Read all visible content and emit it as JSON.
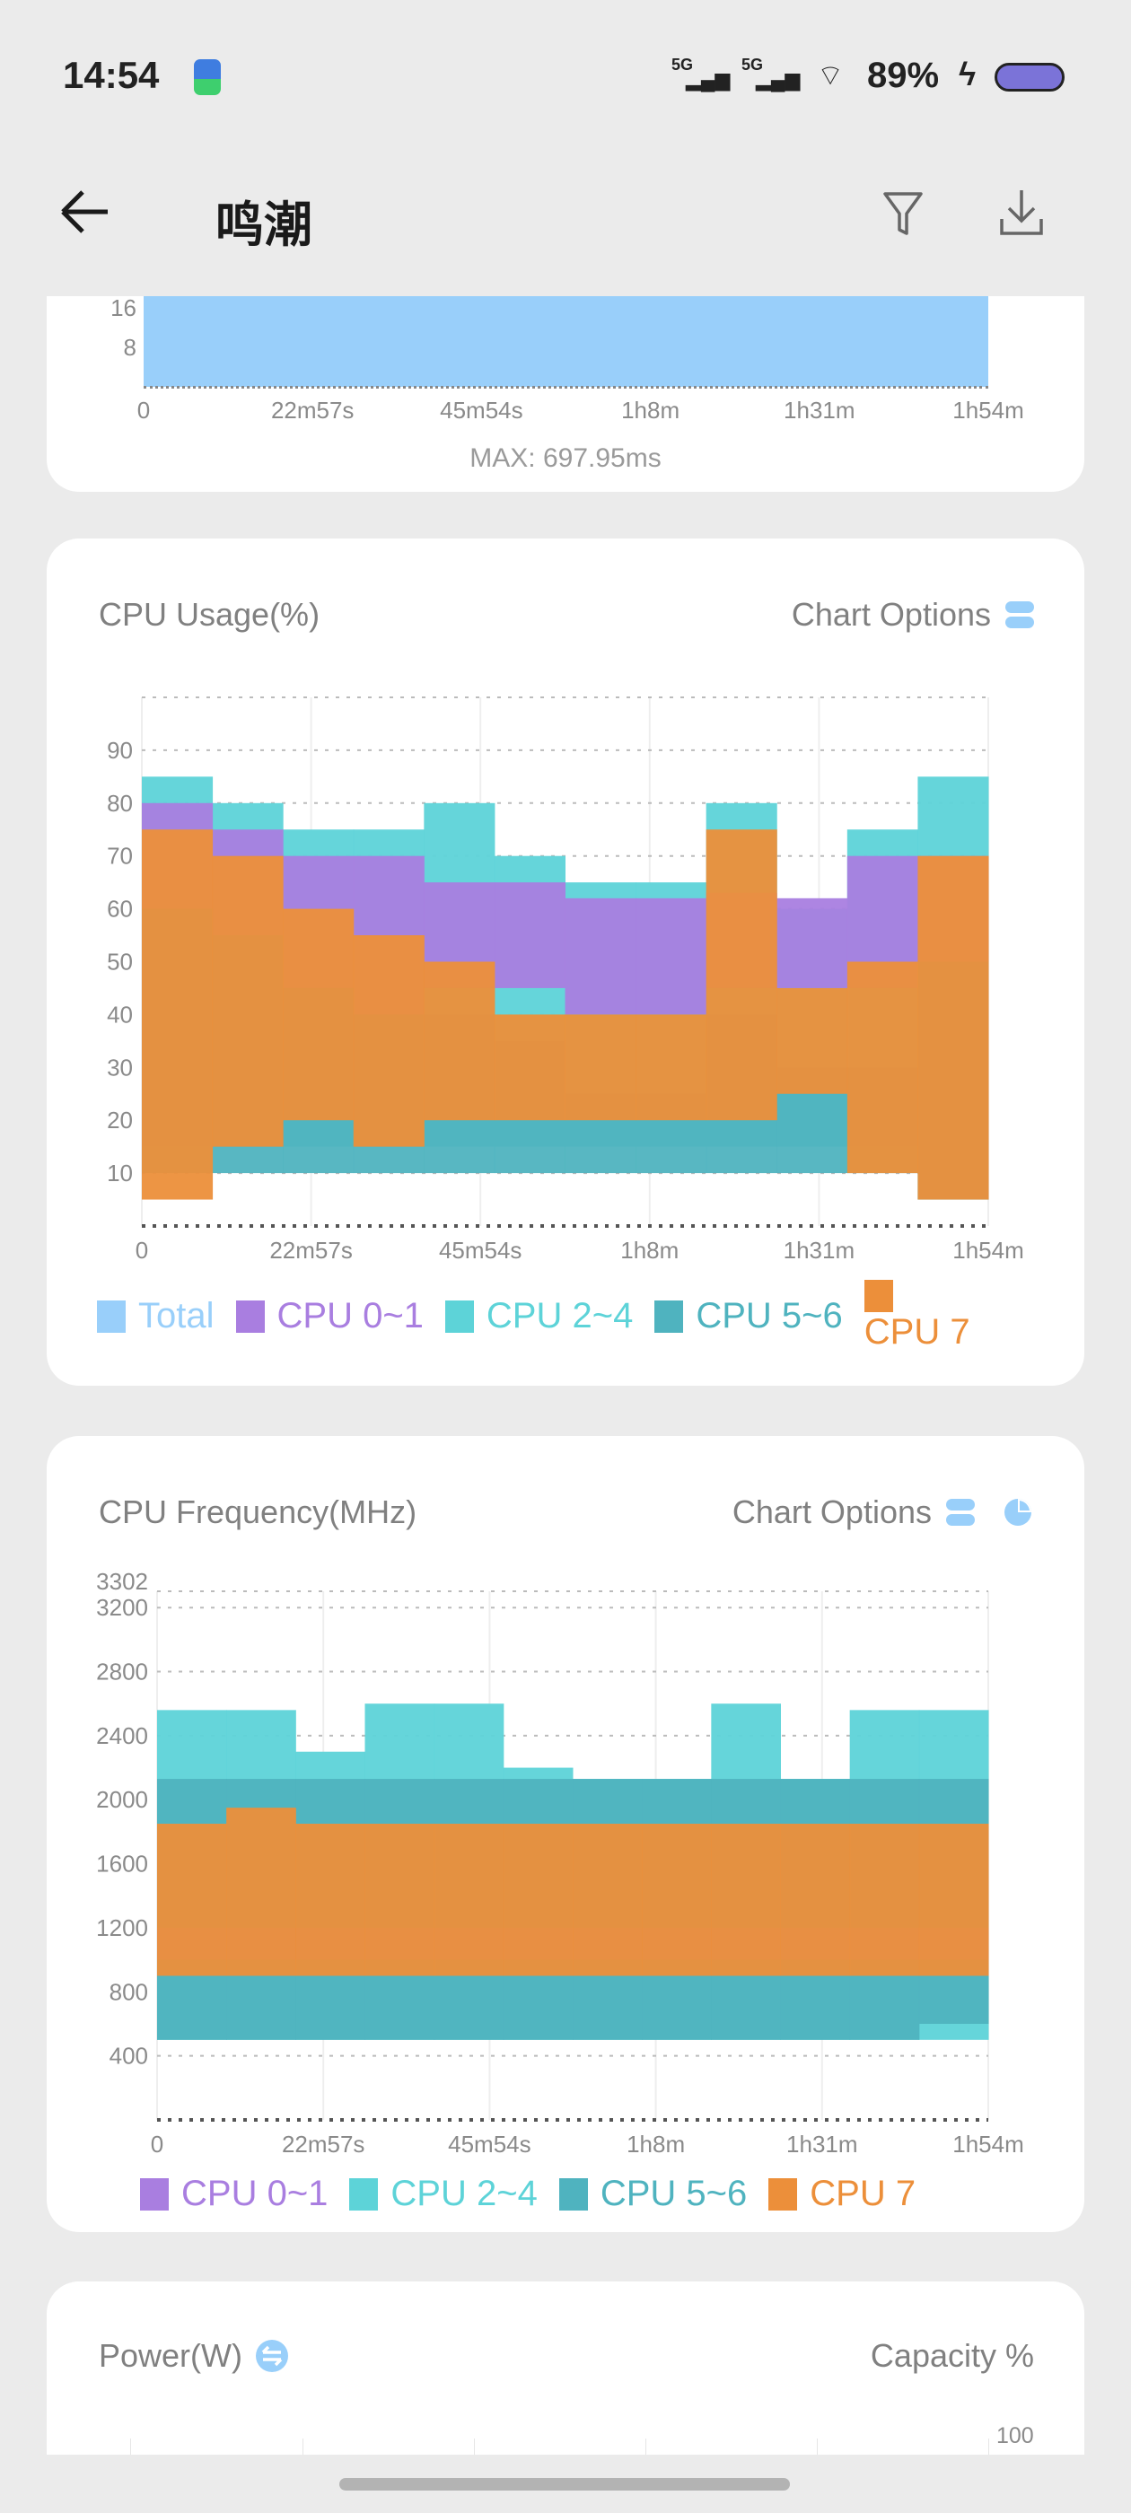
{
  "status_bar": {
    "time": "14:54",
    "network_1": "5G",
    "network_2": "5G",
    "battery": "89%"
  },
  "header": {
    "title": "鸣潮",
    "icons": [
      "back-arrow-icon",
      "filter-icon",
      "download-icon"
    ]
  },
  "colors": {
    "total": "#99cffa",
    "cpu01": "#a97ee0",
    "cpu24": "#5dd3d8",
    "cpu56": "#4fb3bf",
    "cpu7": "#ec8f3a",
    "accent": "#99cffa"
  },
  "frame_card": {
    "y_ticks": [
      "16",
      "8"
    ],
    "x_ticks": [
      "0",
      "22m57s",
      "45m54s",
      "1h8m",
      "1h31m",
      "1h54m"
    ],
    "max_label": "MAX: 697.95ms"
  },
  "cpu_usage": {
    "title": "CPU Usage(%)",
    "options_label": "Chart Options",
    "legend": [
      "Total",
      "CPU 0~1",
      "CPU 2~4",
      "CPU 5~6",
      "CPU 7"
    ]
  },
  "cpu_freq": {
    "title": "CPU Frequency(MHz)",
    "options_label": "Chart Options",
    "legend": [
      "CPU 0~1",
      "CPU 2~4",
      "CPU 5~6",
      "CPU 7"
    ]
  },
  "power": {
    "title": "Power(W)",
    "right_label": "Capacity %",
    "right_tick": "100"
  },
  "chart_data": [
    {
      "type": "area",
      "title": "CPU Usage(%)",
      "ylim": [
        0,
        100
      ],
      "y_ticks": [
        10,
        20,
        30,
        40,
        50,
        60,
        70,
        80,
        90
      ],
      "x_ticks": [
        "0",
        "22m57s",
        "45m54s",
        "1h8m",
        "1h31m",
        "1h54m"
      ],
      "xlim_minutes": [
        0,
        114
      ],
      "grid": true,
      "legend_placement": "bottom",
      "series": [
        {
          "name": "CPU 2~4",
          "color": "#5dd3d8",
          "high": [
            85,
            80,
            75,
            75,
            80,
            70,
            65,
            65,
            80,
            60,
            75,
            85
          ],
          "low": [
            15,
            15,
            15,
            15,
            15,
            15,
            15,
            15,
            15,
            15,
            15,
            5
          ]
        },
        {
          "name": "CPU 0~1",
          "color": "#a97ee0",
          "high": [
            80,
            75,
            70,
            70,
            65,
            65,
            62,
            62,
            63,
            62,
            70,
            70
          ],
          "low": [
            45,
            45,
            45,
            40,
            45,
            45,
            40,
            40,
            45,
            45,
            45,
            45
          ]
        },
        {
          "name": "CPU 5~6",
          "color": "#4fb3bf",
          "high": [
            60,
            55,
            45,
            40,
            40,
            35,
            25,
            25,
            40,
            30,
            30,
            50
          ],
          "low": [
            10,
            10,
            10,
            10,
            10,
            10,
            10,
            10,
            10,
            10,
            10,
            5
          ]
        },
        {
          "name": "CPU 7",
          "color": "#ec8f3a",
          "high": [
            75,
            70,
            60,
            55,
            50,
            40,
            40,
            40,
            75,
            45,
            50,
            70
          ],
          "low": [
            5,
            15,
            20,
            15,
            20,
            20,
            20,
            20,
            20,
            25,
            10,
            5
          ]
        }
      ]
    },
    {
      "type": "area",
      "title": "CPU Frequency(MHz)",
      "ylim": [
        0,
        3302
      ],
      "y_ticks": [
        400,
        800,
        1200,
        1600,
        2000,
        2400,
        2800,
        3200,
        3302
      ],
      "x_ticks": [
        "0",
        "22m57s",
        "45m54s",
        "1h8m",
        "1h31m",
        "1h54m"
      ],
      "xlim_minutes": [
        0,
        114
      ],
      "grid": true,
      "legend_placement": "bottom",
      "series": [
        {
          "name": "CPU 2~4",
          "color": "#5dd3d8",
          "high": [
            2560,
            2560,
            2300,
            2600,
            2600,
            2200,
            2130,
            2130,
            2600,
            2130,
            2560,
            2560
          ],
          "low": [
            500,
            500,
            500,
            500,
            500,
            500,
            500,
            500,
            500,
            500,
            500,
            500
          ]
        },
        {
          "name": "CPU 5~6",
          "color": "#4fb3bf",
          "high": [
            2130,
            2130,
            2130,
            2130,
            2130,
            2130,
            2130,
            2130,
            2130,
            2130,
            2130,
            2130
          ],
          "low": [
            500,
            500,
            500,
            500,
            500,
            500,
            500,
            500,
            500,
            500,
            500,
            600
          ]
        },
        {
          "name": "CPU 0~1",
          "color": "#a97ee0",
          "high": [
            1200,
            1200,
            1200,
            1200,
            1200,
            1200,
            1200,
            1200,
            1200,
            1200,
            1200,
            1200
          ],
          "low": [
            1000,
            1000,
            1000,
            1000,
            1000,
            1000,
            1000,
            1000,
            1000,
            1000,
            1000,
            1000
          ]
        },
        {
          "name": "CPU 7",
          "color": "#ec8f3a",
          "high": [
            1850,
            1950,
            1850,
            1850,
            1850,
            1850,
            1850,
            1850,
            1850,
            1850,
            1850,
            1850
          ],
          "low": [
            900,
            900,
            900,
            900,
            900,
            900,
            900,
            900,
            900,
            900,
            900,
            900
          ]
        }
      ]
    }
  ]
}
